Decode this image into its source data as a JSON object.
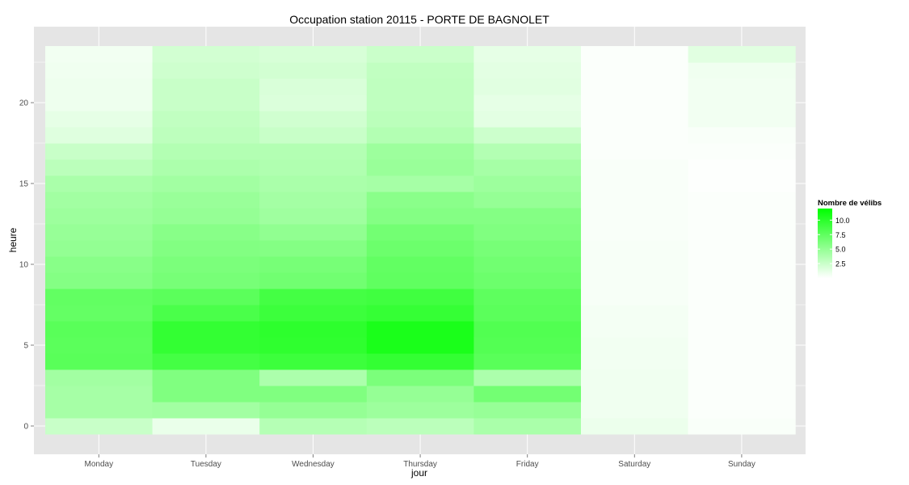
{
  "chart_data": {
    "type": "heatmap",
    "title": "Occupation station 20115 - PORTE DE BAGNOLET",
    "xlabel": "jour",
    "ylabel": "heure",
    "categories": [
      "Monday",
      "Tuesday",
      "Wednesday",
      "Thursday",
      "Friday",
      "Saturday",
      "Sunday"
    ],
    "hours": [
      0,
      1,
      2,
      3,
      4,
      5,
      6,
      7,
      8,
      9,
      10,
      11,
      12,
      13,
      14,
      15,
      16,
      17,
      18,
      19,
      20,
      21,
      22,
      23
    ],
    "y_ticks": [
      0,
      5,
      10,
      15,
      20
    ],
    "ylim": [
      -0.5,
      23.5
    ],
    "grid": true,
    "legend": {
      "title": "Nombre de vélibs",
      "position": "right",
      "ticks": [
        2.5,
        5.0,
        7.5,
        10.0
      ],
      "tick_labels": [
        "2.5",
        "5.0",
        "7.5",
        "10.0"
      ],
      "color_low": "#ffffff",
      "color_high": "#00ff00",
      "min": 0,
      "max": 12
    },
    "colors": {
      "panel_background": "#e5e5e5",
      "grid": "#ffffff"
    },
    "values": {
      "Monday": [
        2.6,
        4.2,
        4.2,
        4.4,
        7.8,
        7.7,
        7.8,
        7.3,
        7.4,
        5.8,
        5.6,
        5.1,
        4.9,
        4.6,
        4.4,
        4.0,
        3.2,
        2.6,
        1.5,
        1.2,
        0.8,
        0.8,
        0.7,
        0.6
      ],
      "Tuesday": [
        1.0,
        4.4,
        6.0,
        6.0,
        8.8,
        9.6,
        9.6,
        8.5,
        7.7,
        6.4,
        6.2,
        5.9,
        5.6,
        5.0,
        4.8,
        4.4,
        3.9,
        3.6,
        3.1,
        2.9,
        2.6,
        2.6,
        2.3,
        2.1
      ],
      "Wednesday": [
        3.5,
        5.0,
        6.0,
        3.9,
        9.2,
        9.8,
        9.9,
        9.2,
        8.8,
        6.7,
        6.4,
        5.8,
        5.2,
        4.5,
        4.3,
        4.0,
        3.7,
        3.6,
        2.6,
        2.2,
        1.7,
        1.8,
        2.1,
        1.9
      ],
      "Thursday": [
        3.2,
        4.6,
        5.0,
        6.2,
        9.6,
        10.8,
        10.8,
        9.5,
        9.0,
        7.5,
        7.4,
        6.9,
        6.6,
        5.8,
        5.5,
        4.2,
        4.8,
        4.6,
        3.6,
        3.2,
        3.0,
        3.0,
        2.9,
        2.5
      ],
      "Friday": [
        4.0,
        4.9,
        6.6,
        3.9,
        7.8,
        8.1,
        8.2,
        7.7,
        7.6,
        6.9,
        6.7,
        6.4,
        6.0,
        5.8,
        5.0,
        4.6,
        4.2,
        3.6,
        2.4,
        1.3,
        1.2,
        1.4,
        1.3,
        1.2
      ],
      "Saturday": [
        0.9,
        0.7,
        0.7,
        0.7,
        0.6,
        0.6,
        0.5,
        0.5,
        0.4,
        0.4,
        0.4,
        0.4,
        0.3,
        0.3,
        0.3,
        0.3,
        0.3,
        0.2,
        0.2,
        0.2,
        0.2,
        0.2,
        0.2,
        0.2
      ],
      "Sunday": [
        0.3,
        0.2,
        0.2,
        0.2,
        0.2,
        0.2,
        0.2,
        0.2,
        0.2,
        0.2,
        0.2,
        0.2,
        0.2,
        0.2,
        0.2,
        0.1,
        0.1,
        0.2,
        0.3,
        0.6,
        0.6,
        0.6,
        0.7,
        1.4
      ]
    }
  }
}
